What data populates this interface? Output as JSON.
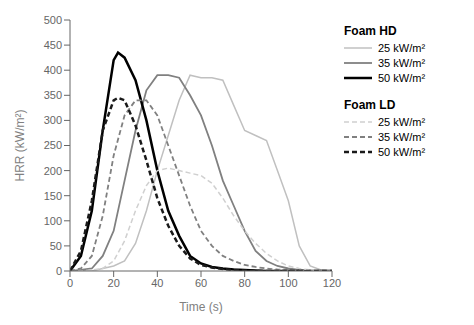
{
  "chart_data": {
    "type": "line",
    "xlabel": "Time (s)",
    "ylabel": "HRR (kW/m²)",
    "xlim": [
      0,
      120
    ],
    "ylim": [
      0,
      500
    ],
    "xticks": [
      0,
      20,
      40,
      60,
      80,
      100,
      120
    ],
    "yticks": [
      0,
      50,
      100,
      150,
      200,
      250,
      300,
      350,
      400,
      450,
      500
    ],
    "grid": false,
    "legend": "right",
    "annotations": [
      "Foam HD",
      "Foam LD"
    ],
    "series": [
      {
        "name": "25 kW/m²",
        "color": "#c0c0c0",
        "line_style": "solid",
        "x": [
          0,
          5,
          10,
          15,
          20,
          25,
          30,
          35,
          40,
          45,
          50,
          55,
          60,
          65,
          70,
          75,
          80,
          85,
          90,
          95,
          100,
          105,
          110,
          115,
          120
        ],
        "values": [
          0,
          0,
          0,
          5,
          10,
          20,
          55,
          120,
          200,
          270,
          340,
          390,
          385,
          385,
          380,
          330,
          280,
          270,
          260,
          200,
          140,
          50,
          10,
          2,
          0
        ]
      },
      {
        "name": "35 kW/m²",
        "color": "#808080",
        "line_style": "solid",
        "x": [
          0,
          5,
          10,
          15,
          20,
          25,
          30,
          35,
          40,
          45,
          50,
          55,
          60,
          65,
          70,
          75,
          80,
          85,
          90,
          95,
          100,
          105,
          110,
          115,
          120
        ],
        "values": [
          0,
          2,
          5,
          30,
          80,
          180,
          280,
          360,
          390,
          390,
          385,
          350,
          310,
          250,
          180,
          130,
          80,
          40,
          20,
          10,
          5,
          2,
          0,
          0,
          0
        ]
      },
      {
        "name": "50 kW/m²",
        "color": "#000000",
        "line_style": "solid",
        "x": [
          0,
          5,
          10,
          15,
          20,
          22,
          25,
          30,
          35,
          40,
          45,
          50,
          55,
          60,
          65,
          70,
          75,
          80,
          85,
          90,
          95,
          100,
          105,
          110,
          115,
          120
        ],
        "values": [
          0,
          30,
          120,
          280,
          420,
          435,
          425,
          380,
          300,
          200,
          120,
          70,
          30,
          15,
          8,
          5,
          3,
          2,
          1,
          0,
          0,
          0,
          0,
          0,
          0,
          0
        ]
      },
      {
        "name": "25 kW/m²",
        "color": "#d0d0d0",
        "line_style": "dashed",
        "x": [
          0,
          5,
          10,
          15,
          20,
          25,
          30,
          35,
          40,
          45,
          50,
          55,
          60,
          65,
          70,
          75,
          80,
          85,
          90,
          95,
          100,
          105,
          110,
          115,
          120
        ],
        "values": [
          0,
          0,
          2,
          5,
          20,
          60,
          120,
          170,
          200,
          205,
          200,
          195,
          190,
          175,
          145,
          110,
          80,
          55,
          35,
          20,
          10,
          5,
          2,
          0,
          0
        ]
      },
      {
        "name": "35 kW/m²",
        "color": "#808080",
        "line_style": "dashed",
        "x": [
          0,
          5,
          10,
          15,
          20,
          25,
          30,
          35,
          40,
          45,
          50,
          55,
          60,
          65,
          70,
          75,
          80,
          85,
          90,
          95,
          100,
          105,
          110,
          115,
          120
        ],
        "values": [
          0,
          5,
          30,
          110,
          230,
          310,
          340,
          340,
          310,
          250,
          190,
          130,
          80,
          50,
          30,
          20,
          12,
          8,
          5,
          3,
          2,
          1,
          0,
          0,
          0
        ]
      },
      {
        "name": "50 kW/m²",
        "color": "#1a1a1a",
        "line_style": "dashed",
        "x": [
          0,
          5,
          10,
          15,
          20,
          22,
          25,
          30,
          35,
          40,
          45,
          50,
          55,
          60,
          65,
          70,
          75,
          80,
          85,
          90,
          95,
          100,
          105,
          110,
          115,
          120
        ],
        "values": [
          0,
          40,
          140,
          280,
          340,
          345,
          340,
          290,
          220,
          145,
          90,
          50,
          25,
          12,
          7,
          4,
          2,
          1,
          0,
          0,
          0,
          0,
          0,
          0,
          0,
          0
        ]
      }
    ]
  }
}
